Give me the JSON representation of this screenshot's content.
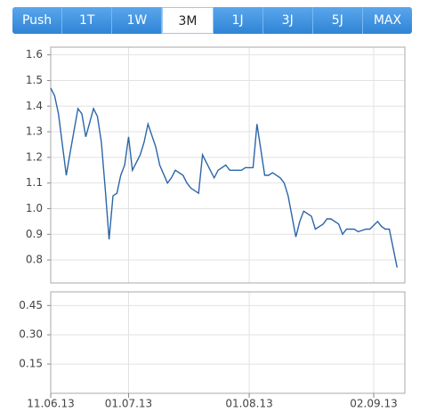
{
  "tabs": [
    {
      "label": "Push"
    },
    {
      "label": "1T"
    },
    {
      "label": "1W"
    },
    {
      "label": "3M",
      "active": true
    },
    {
      "label": "1J"
    },
    {
      "label": "3J"
    },
    {
      "label": "5J"
    },
    {
      "label": "MAX"
    }
  ],
  "chart_data": [
    {
      "type": "line",
      "color": "#2b66a8",
      "grid": true,
      "xlim": [
        "2013-06-11",
        "2013-09-10"
      ],
      "ylim": [
        0.71,
        1.63
      ],
      "yticks": [
        0.8,
        0.9,
        {
          "value": 1,
          "label": "1.0"
        },
        1.1,
        1.2,
        1.3,
        1.4,
        1.5,
        1.6
      ],
      "x": [
        "2013-06-11",
        "2013-06-12",
        "2013-06-13",
        "2013-06-15",
        "2013-06-16",
        "2013-06-18",
        "2013-06-19",
        "2013-06-20",
        "2013-06-22",
        "2013-06-23",
        "2013-06-24",
        "2013-06-25",
        "2013-06-26",
        "2013-06-27",
        "2013-06-28",
        "2013-06-29",
        "2013-06-30",
        "2013-07-01",
        "2013-07-02",
        "2013-07-04",
        "2013-07-05",
        "2013-07-06",
        "2013-07-08",
        "2013-07-09",
        "2013-07-11",
        "2013-07-12",
        "2013-07-13",
        "2013-07-15",
        "2013-07-16",
        "2013-07-17",
        "2013-07-19",
        "2013-07-20",
        "2013-07-22",
        "2013-07-23",
        "2013-07-24",
        "2013-07-26",
        "2013-07-27",
        "2013-07-28",
        "2013-07-30",
        "2013-07-31",
        "2013-08-02",
        "2013-08-03",
        "2013-08-05",
        "2013-08-06",
        "2013-08-07",
        "2013-08-09",
        "2013-08-10",
        "2013-08-11",
        "2013-08-13",
        "2013-08-14",
        "2013-08-15",
        "2013-08-17",
        "2013-08-18",
        "2013-08-20",
        "2013-08-21",
        "2013-08-22",
        "2013-08-24",
        "2013-08-25",
        "2013-08-26",
        "2013-08-28",
        "2013-08-29",
        "2013-08-31",
        "2013-09-01",
        "2013-09-03",
        "2013-09-04",
        "2013-09-05",
        "2013-09-06",
        "2013-09-08"
      ],
      "values": [
        1.47,
        1.44,
        1.37,
        1.13,
        1.22,
        1.39,
        1.37,
        1.28,
        1.39,
        1.36,
        1.26,
        1.08,
        0.88,
        1.05,
        1.06,
        1.13,
        1.17,
        1.28,
        1.15,
        1.21,
        1.26,
        1.33,
        1.24,
        1.17,
        1.1,
        1.12,
        1.15,
        1.13,
        1.1,
        1.08,
        1.06,
        1.21,
        1.15,
        1.12,
        1.15,
        1.17,
        1.15,
        1.15,
        1.15,
        1.16,
        1.16,
        1.33,
        1.13,
        1.13,
        1.14,
        1.12,
        1.1,
        1.05,
        0.89,
        0.95,
        0.99,
        0.97,
        0.92,
        0.94,
        0.96,
        0.96,
        0.94,
        0.9,
        0.92,
        0.92,
        0.91,
        0.92,
        0.92,
        0.95,
        0.93,
        0.92,
        0.92,
        0.77
      ]
    },
    {
      "type": "bar",
      "grid": true,
      "xlim": [
        "2013-06-11",
        "2013-09-10"
      ],
      "ylim": [
        0,
        0.52
      ],
      "yticks": [
        0.15,
        {
          "value": 0.3,
          "label": "0.30"
        },
        0.45
      ],
      "xticks": [
        {
          "value": "2013-06-11",
          "label": "11.06.13"
        },
        {
          "value": "2013-07-01",
          "label": "01.07.13"
        },
        {
          "value": "2013-08-01",
          "label": "01.08.13"
        },
        {
          "value": "2013-09-02",
          "label": "02.09.13"
        }
      ]
    }
  ]
}
